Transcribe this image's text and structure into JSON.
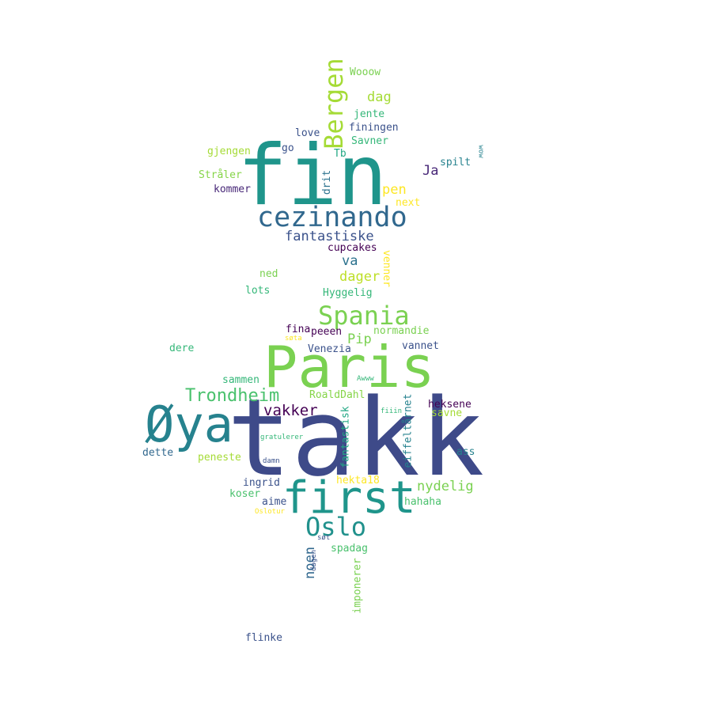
{
  "wordcloud": {
    "words": [
      {
        "text": "takk",
        "color": "#3e4a89"
      },
      {
        "text": "fin",
        "color": "#1f958b"
      },
      {
        "text": "Paris",
        "color": "#7ad151"
      },
      {
        "text": "Øya",
        "color": "#26828e"
      },
      {
        "text": "first",
        "color": "#1f958b"
      },
      {
        "text": "cezinando",
        "color": "#31688e"
      },
      {
        "text": "Bergen",
        "color": "#a5db36"
      },
      {
        "text": "Oslo",
        "color": "#21918c"
      },
      {
        "text": "Spania",
        "color": "#7ad151"
      },
      {
        "text": "Trondheim",
        "color": "#4ac16d"
      },
      {
        "text": "vakker",
        "color": "#440154"
      },
      {
        "text": "fantastiske",
        "color": "#3b528b"
      },
      {
        "text": "nydelig",
        "color": "#7ad151"
      },
      {
        "text": "noen",
        "color": "#31688e"
      },
      {
        "text": "dag",
        "color": "#a5db36"
      },
      {
        "text": "pen",
        "color": "#fde725"
      },
      {
        "text": "Ja",
        "color": "#482878"
      },
      {
        "text": "dager",
        "color": "#bddf26"
      },
      {
        "text": "Pip",
        "color": "#7ad151"
      },
      {
        "text": "va",
        "color": "#2c728e"
      },
      {
        "text": "Wooow",
        "color": "#7ad151"
      },
      {
        "text": "jente",
        "color": "#35b779"
      },
      {
        "text": "finingen",
        "color": "#3b528b"
      },
      {
        "text": "love",
        "color": "#3b528b"
      },
      {
        "text": "Savner",
        "color": "#35b779"
      },
      {
        "text": "go",
        "color": "#3b528b"
      },
      {
        "text": "Tb",
        "color": "#22a884"
      },
      {
        "text": "gjengen",
        "color": "#a5db36"
      },
      {
        "text": "spilt",
        "color": "#26828e"
      },
      {
        "text": "wow",
        "color": "#26828e"
      },
      {
        "text": "Stråler",
        "color": "#86d549"
      },
      {
        "text": "drit",
        "color": "#2c728e"
      },
      {
        "text": "kommer",
        "color": "#482878"
      },
      {
        "text": "next",
        "color": "#fde725"
      },
      {
        "text": "cupcakes",
        "color": "#440154"
      },
      {
        "text": "venner",
        "color": "#fde725"
      },
      {
        "text": "ned",
        "color": "#7ad151"
      },
      {
        "text": "lots",
        "color": "#35b779"
      },
      {
        "text": "Hyggelig",
        "color": "#35b779"
      },
      {
        "text": "fina",
        "color": "#440154"
      },
      {
        "text": "peeen",
        "color": "#440154"
      },
      {
        "text": "normandie",
        "color": "#7ad151"
      },
      {
        "text": "søta",
        "color": "#fde725"
      },
      {
        "text": "dere",
        "color": "#35b779"
      },
      {
        "text": "Venezia",
        "color": "#3b528b"
      },
      {
        "text": "vannet",
        "color": "#3b528b"
      },
      {
        "text": "Awww",
        "color": "#35b779"
      },
      {
        "text": "sammen",
        "color": "#35b779"
      },
      {
        "text": "RoaldDahl",
        "color": "#86d549"
      },
      {
        "text": "heksene",
        "color": "#440154"
      },
      {
        "text": "eiffeltårnet",
        "color": "#26828e"
      },
      {
        "text": "fiiin",
        "color": "#35b779"
      },
      {
        "text": "savne",
        "color": "#a5db36"
      },
      {
        "text": "fantastisk",
        "color": "#22a884"
      },
      {
        "text": "gratulerer",
        "color": "#35b779"
      },
      {
        "text": "dette",
        "color": "#31688e"
      },
      {
        "text": "peneste",
        "color": "#a5db36"
      },
      {
        "text": "damn",
        "color": "#3b528b"
      },
      {
        "text": "ass",
        "color": "#26828e"
      },
      {
        "text": "ingrid",
        "color": "#3b528b"
      },
      {
        "text": "hekta18",
        "color": "#fde725"
      },
      {
        "text": "koser",
        "color": "#4ac16d"
      },
      {
        "text": "aime",
        "color": "#3b528b"
      },
      {
        "text": "hahaha",
        "color": "#4ac16d"
      },
      {
        "text": "Oslotur",
        "color": "#fde725"
      },
      {
        "text": "søt",
        "color": "#3b528b"
      },
      {
        "text": "spadag",
        "color": "#4ac16d"
      },
      {
        "text": "dagen",
        "color": "#3b528b"
      },
      {
        "text": "imponerer",
        "color": "#7ad151"
      },
      {
        "text": "flinke",
        "color": "#3b528b"
      }
    ]
  }
}
